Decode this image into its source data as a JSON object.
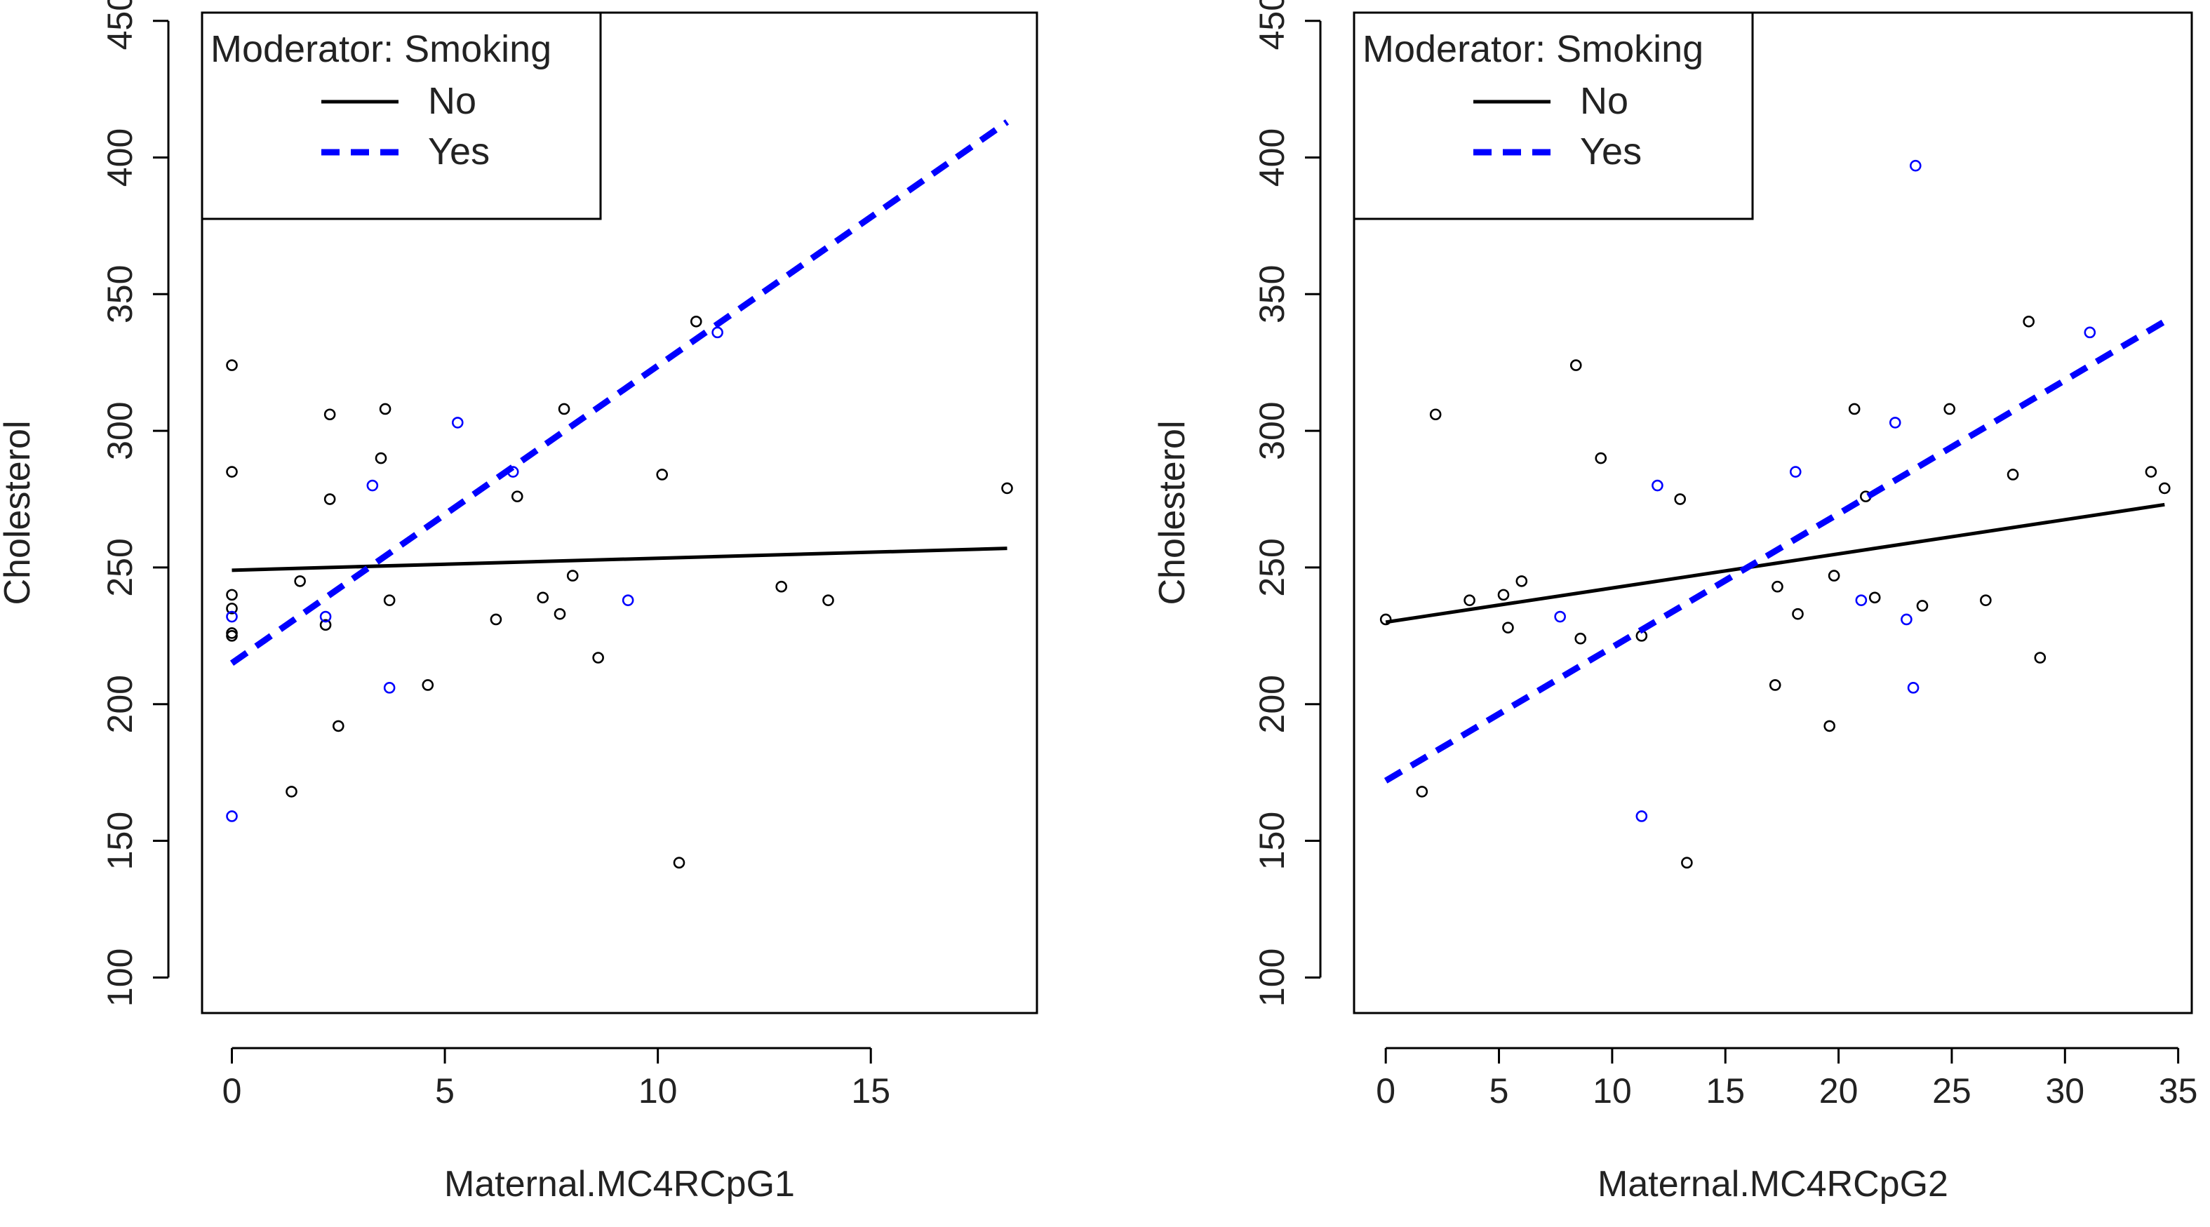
{
  "chart_data": [
    {
      "type": "scatter",
      "xlabel": "Maternal.MC4RCpG1",
      "ylabel": "Cholesterol",
      "xlim": [
        -0.7,
        18.9
      ],
      "ylim": [
        87,
        453
      ],
      "xticks": [
        0,
        5,
        10,
        15
      ],
      "yticks": [
        100,
        150,
        200,
        250,
        300,
        350,
        400,
        450
      ],
      "legend": {
        "title": "Moderator: Smoking",
        "position": "top-left",
        "entries": [
          {
            "label": "No",
            "color": "#000000",
            "style": "solid"
          },
          {
            "label": "Yes",
            "color": "#0000ff",
            "style": "dashed"
          }
        ]
      },
      "series": [
        {
          "name": "No",
          "color": "#000000",
          "points": [
            [
              0,
              324
            ],
            [
              0,
              285
            ],
            [
              0,
              240
            ],
            [
              0,
              235
            ],
            [
              0,
              226
            ],
            [
              0,
              225
            ],
            [
              1.4,
              168
            ],
            [
              1.6,
              245
            ],
            [
              2.2,
              229
            ],
            [
              2.3,
              275
            ],
            [
              2.3,
              306
            ],
            [
              2.5,
              192
            ],
            [
              3.5,
              290
            ],
            [
              3.6,
              308
            ],
            [
              3.7,
              238
            ],
            [
              4.6,
              207
            ],
            [
              6.2,
              231
            ],
            [
              6.7,
              276
            ],
            [
              7.3,
              239
            ],
            [
              7.7,
              233
            ],
            [
              7.8,
              308
            ],
            [
              8.0,
              247
            ],
            [
              8.6,
              217
            ],
            [
              10.1,
              284
            ],
            [
              10.5,
              142
            ],
            [
              10.9,
              340
            ],
            [
              12.9,
              243
            ],
            [
              14.0,
              238
            ],
            [
              18.2,
              279
            ]
          ],
          "fit": [
            [
              0,
              249
            ],
            [
              18.2,
              257
            ]
          ]
        },
        {
          "name": "Yes",
          "color": "#0000ff",
          "points": [
            [
              0,
              159
            ],
            [
              0,
              232
            ],
            [
              2.2,
              232
            ],
            [
              3.3,
              280
            ],
            [
              3.7,
              206
            ],
            [
              5.3,
              303
            ],
            [
              6.6,
              285
            ],
            [
              9.3,
              238
            ],
            [
              11.4,
              336
            ]
          ],
          "fit": [
            [
              0,
              215
            ],
            [
              18.2,
              413
            ]
          ]
        }
      ]
    },
    {
      "type": "scatter",
      "xlabel": "Maternal.MC4RCpG2",
      "ylabel": "Cholesterol",
      "xlim": [
        -1.4,
        35.6
      ],
      "ylim": [
        87,
        453
      ],
      "xticks": [
        0,
        5,
        10,
        15,
        20,
        25,
        30,
        35
      ],
      "yticks": [
        100,
        150,
        200,
        250,
        300,
        350,
        400,
        450
      ],
      "legend": {
        "title": "Moderator: Smoking",
        "position": "top-left",
        "entries": [
          {
            "label": "No",
            "color": "#000000",
            "style": "solid"
          },
          {
            "label": "Yes",
            "color": "#0000ff",
            "style": "dashed"
          }
        ]
      },
      "series": [
        {
          "name": "No",
          "color": "#000000",
          "points": [
            [
              0,
              231
            ],
            [
              1.6,
              168
            ],
            [
              2.2,
              306
            ],
            [
              3.7,
              238
            ],
            [
              5.2,
              240
            ],
            [
              5.4,
              228
            ],
            [
              6.0,
              245
            ],
            [
              8.4,
              324
            ],
            [
              8.6,
              224
            ],
            [
              9.5,
              290
            ],
            [
              11.3,
              225
            ],
            [
              13.0,
              275
            ],
            [
              13.3,
              142
            ],
            [
              17.2,
              207
            ],
            [
              17.3,
              243
            ],
            [
              18.2,
              233
            ],
            [
              19.6,
              192
            ],
            [
              19.8,
              247
            ],
            [
              20.7,
              308
            ],
            [
              21.2,
              276
            ],
            [
              21.6,
              239
            ],
            [
              23.7,
              236
            ],
            [
              24.9,
              308
            ],
            [
              26.5,
              238
            ],
            [
              27.7,
              284
            ],
            [
              28.4,
              340
            ],
            [
              28.9,
              217
            ],
            [
              33.8,
              285
            ],
            [
              34.4,
              279
            ]
          ],
          "fit": [
            [
              0,
              230
            ],
            [
              34.4,
              273
            ]
          ]
        },
        {
          "name": "Yes",
          "color": "#0000ff",
          "points": [
            [
              7.7,
              232
            ],
            [
              11.3,
              159
            ],
            [
              12.0,
              280
            ],
            [
              18.1,
              285
            ],
            [
              21.0,
              238
            ],
            [
              22.5,
              303
            ],
            [
              23.0,
              231
            ],
            [
              23.3,
              206
            ],
            [
              23.4,
              397
            ],
            [
              31.1,
              336
            ]
          ],
          "fit": [
            [
              0,
              172
            ],
            [
              34.4,
              340
            ]
          ]
        }
      ]
    }
  ]
}
